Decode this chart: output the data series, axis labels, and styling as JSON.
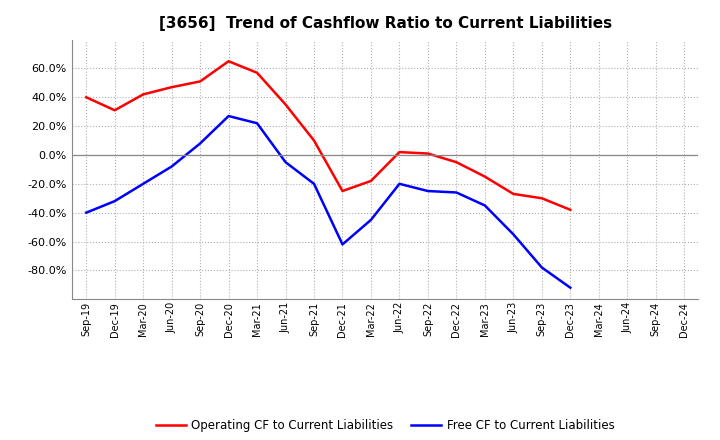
{
  "title": "[3656]  Trend of Cashflow Ratio to Current Liabilities",
  "x_labels": [
    "Sep-19",
    "Dec-19",
    "Mar-20",
    "Jun-20",
    "Sep-20",
    "Dec-20",
    "Mar-21",
    "Jun-21",
    "Sep-21",
    "Dec-21",
    "Mar-22",
    "Jun-22",
    "Sep-22",
    "Dec-22",
    "Mar-23",
    "Jun-23",
    "Sep-23",
    "Dec-23",
    "Mar-24",
    "Jun-24",
    "Sep-24",
    "Dec-24"
  ],
  "operating_cf": [
    40.0,
    31.0,
    42.0,
    47.0,
    51.0,
    65.0,
    57.0,
    35.0,
    10.0,
    -25.0,
    -18.0,
    2.0,
    1.0,
    -5.0,
    -15.0,
    -27.0,
    -30.0,
    -38.0,
    null,
    null,
    null,
    null
  ],
  "free_cf": [
    -40.0,
    -32.0,
    -20.0,
    -8.0,
    8.0,
    27.0,
    22.0,
    -5.0,
    -20.0,
    -62.0,
    -45.0,
    -20.0,
    -25.0,
    -26.0,
    -35.0,
    -55.0,
    -78.0,
    -92.0,
    null,
    null,
    null,
    null
  ],
  "operating_cf_color": "#ff0000",
  "free_cf_color": "#0000ff",
  "background_color": "#ffffff",
  "grid_color": "#b0b0b0",
  "ylim": [
    -100.0,
    80.0
  ],
  "yticks": [
    -80.0,
    -60.0,
    -40.0,
    -20.0,
    0.0,
    20.0,
    40.0,
    60.0
  ],
  "legend_operating": "Operating CF to Current Liabilities",
  "legend_free": "Free CF to Current Liabilities"
}
